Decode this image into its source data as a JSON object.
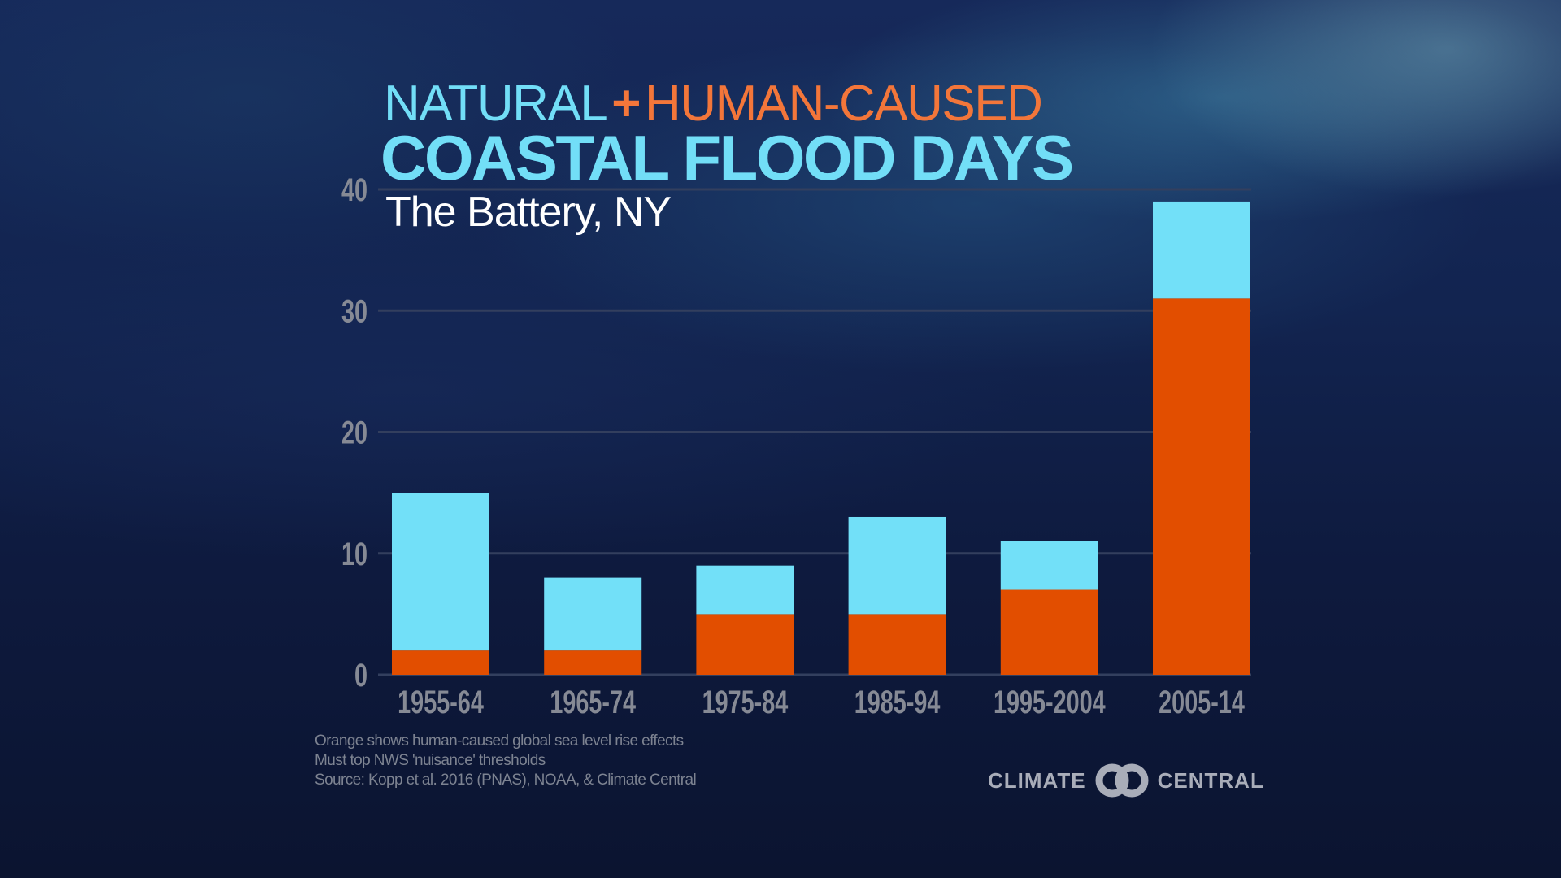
{
  "header": {
    "title_line1_natural": "NATURAL",
    "title_line1_plus": "+",
    "title_line1_human": "HUMAN-CAUSED",
    "title_line2": "COASTAL FLOOD DAYS",
    "subtitle": "The Battery, NY"
  },
  "colors": {
    "natural": "#72e0f8",
    "human_caused": "#e24e00",
    "title_orange": "#f3763a",
    "gridline": "#333f5e",
    "axis_label": "#868a95"
  },
  "footnotes": [
    "Orange shows human-caused global sea level rise effects",
    "Must top NWS 'nuisance' thresholds",
    "Source: Kopp et al. 2016 (PNAS), NOAA, & Climate Central"
  ],
  "logo": {
    "left_text": "CLIMATE",
    "right_text": "CENTRAL",
    "icon": "interlocking-rings-icon"
  },
  "chart_data": {
    "type": "bar",
    "stacked": true,
    "title": "NATURAL + HUMAN-CAUSED COASTAL FLOOD DAYS",
    "subtitle": "The Battery, NY",
    "xlabel": "",
    "ylabel": "",
    "categories": [
      "1955-64",
      "1965-74",
      "1975-84",
      "1985-94",
      "1995-2004",
      "2005-14"
    ],
    "series": [
      {
        "name": "Human-caused",
        "color": "#e24e00",
        "values": [
          2,
          2,
          5,
          5,
          7,
          31
        ]
      },
      {
        "name": "Natural",
        "color": "#72e0f8",
        "values": [
          13,
          6,
          4,
          8,
          4,
          8
        ]
      }
    ],
    "totals": [
      15,
      8,
      9,
      13,
      11,
      39
    ],
    "ylim": [
      0,
      40
    ],
    "yticks": [
      0,
      10,
      20,
      30,
      40
    ],
    "grid": true,
    "legend": "none (encoded in title colors)"
  }
}
